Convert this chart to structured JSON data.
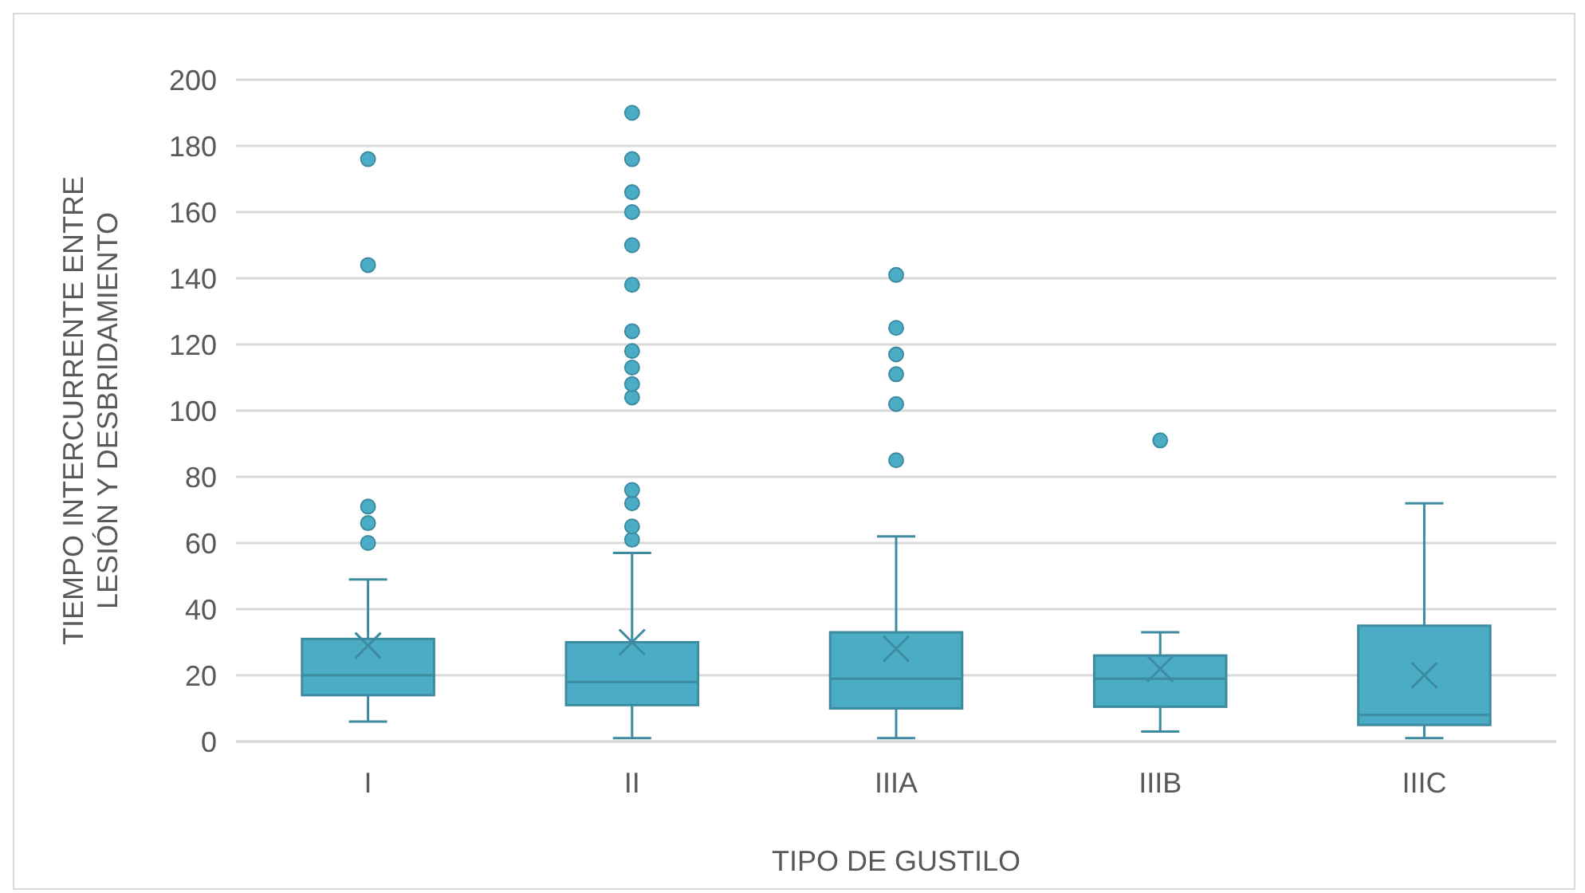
{
  "chart_data": {
    "type": "box",
    "xlabel": "TIPO DE GUSTILO",
    "ylabel": "TIEMPO INTERCURRENTE ENTRE LESIÓN Y DESBRIDAMIENTO",
    "categories": [
      "I",
      "II",
      "IIIA",
      "IIIB",
      "IIIC"
    ],
    "color": "#4bacc6",
    "ylim": [
      0,
      200
    ],
    "yticks": [
      0,
      20,
      40,
      60,
      80,
      100,
      120,
      140,
      160,
      180,
      200
    ],
    "grid": "y",
    "boxes": [
      {
        "low": 6,
        "q1": 14,
        "median": 20,
        "q3": 31,
        "high": 49,
        "mean": 29,
        "outliers": [
          60,
          66,
          71,
          144,
          176
        ]
      },
      {
        "low": 1,
        "q1": 11,
        "median": 18,
        "q3": 30,
        "high": 57,
        "mean": 30,
        "outliers": [
          61,
          65,
          72,
          76,
          104,
          108,
          113,
          118,
          124,
          138,
          150,
          160,
          166,
          176,
          190
        ]
      },
      {
        "low": 1,
        "q1": 10,
        "median": 19,
        "q3": 33,
        "high": 62,
        "mean": 28,
        "outliers": [
          85,
          102,
          111,
          117,
          125,
          141
        ]
      },
      {
        "low": 3,
        "q1": 10.5,
        "median": 19,
        "q3": 26,
        "high": 33,
        "mean": 22,
        "outliers": [
          91
        ]
      },
      {
        "low": 1,
        "q1": 5,
        "median": 8,
        "q3": 35,
        "high": 72,
        "mean": 20
      }
    ]
  }
}
